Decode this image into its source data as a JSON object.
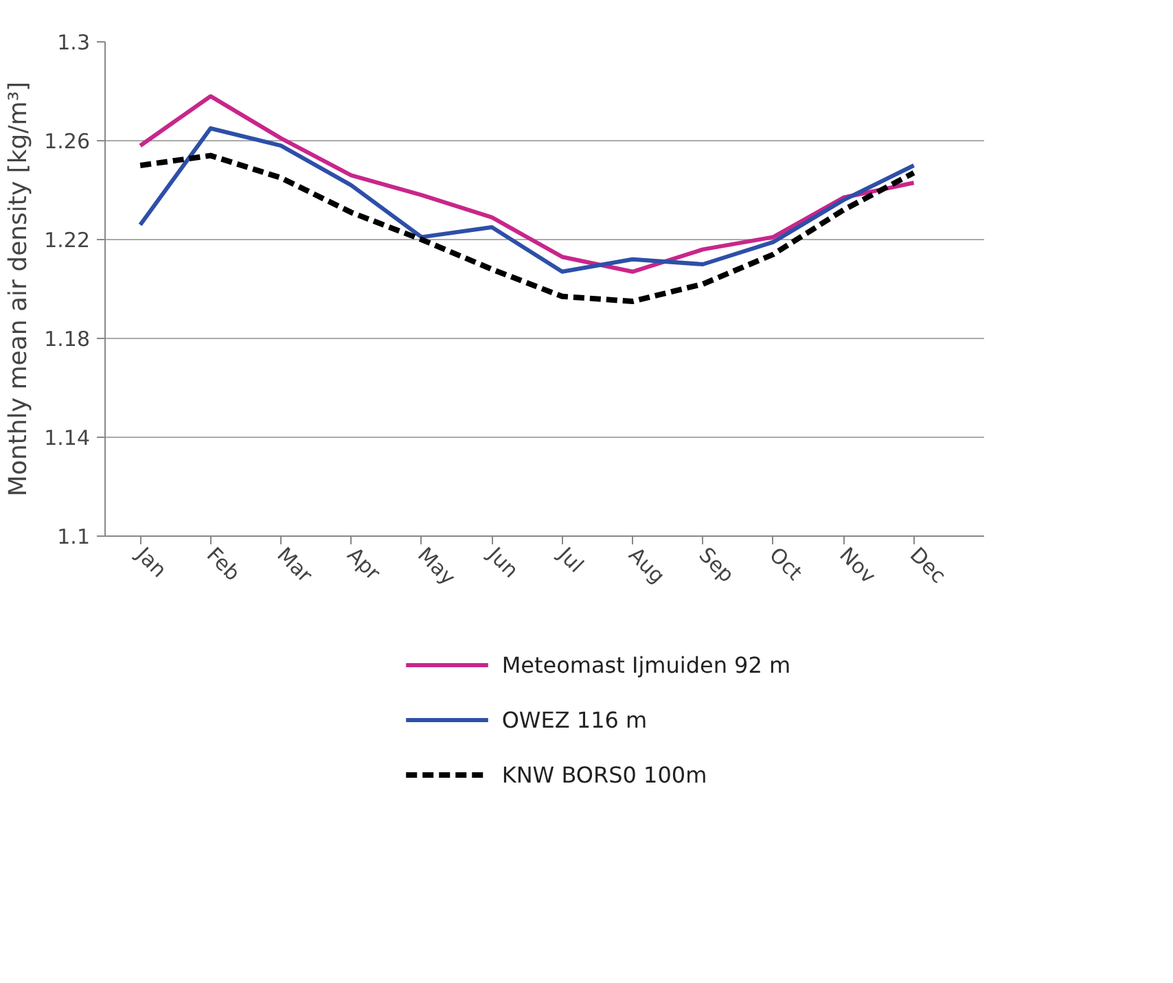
{
  "chart_data": {
    "type": "line",
    "ylabel": "Monthly mean air density [kg/m³]",
    "categories": [
      "Jan",
      "Feb",
      "Mar",
      "Apr",
      "May",
      "Jun",
      "Jul",
      "Aug",
      "Sep",
      "Oct",
      "Nov",
      "Dec"
    ],
    "series": [
      {
        "name": "Meteomast Ijmuiden 92 m",
        "color": "#c8268a",
        "values": [
          1.258,
          1.278,
          1.261,
          1.246,
          1.238,
          1.229,
          1.213,
          1.207,
          1.216,
          1.221,
          1.237,
          1.243
        ]
      },
      {
        "name": "OWEZ 116 m",
        "color": "#2e4fa8",
        "values": [
          1.226,
          1.265,
          1.258,
          1.242,
          1.221,
          1.225,
          1.207,
          1.212,
          1.21,
          1.219,
          1.236,
          1.25
        ]
      },
      {
        "name": "KNW BORS0 100m",
        "color": "#000000",
        "line_style": "dashed",
        "values": [
          1.25,
          1.254,
          1.245,
          1.231,
          1.22,
          1.208,
          1.197,
          1.195,
          1.202,
          1.214,
          1.232,
          1.247
        ]
      }
    ],
    "ylim": [
      1.1,
      1.3
    ],
    "yticks": [
      {
        "value": 1.1,
        "label": "1.1"
      },
      1.14,
      1.18,
      1.22,
      1.26,
      {
        "value": 1.3,
        "label": "1.3"
      }
    ],
    "grid": "y",
    "legend": "bottom",
    "line_style": "solid",
    "marker": "none"
  }
}
